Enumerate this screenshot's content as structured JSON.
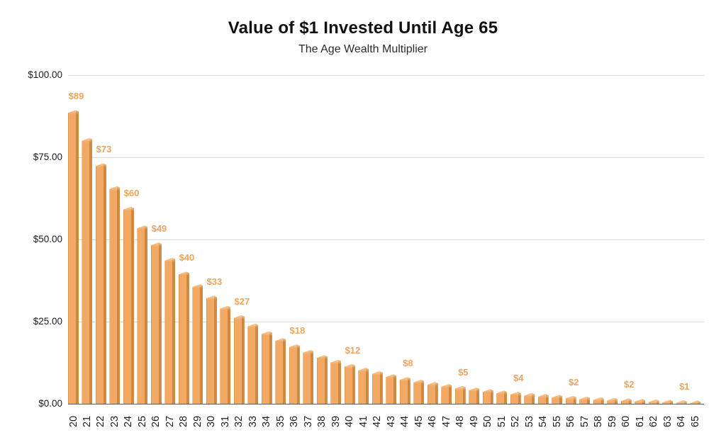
{
  "chart_data": {
    "type": "bar",
    "title": "Value of $1 Invested Until Age 65",
    "subtitle": "The Age Wealth Multiplier",
    "xlabel": "",
    "ylabel": "",
    "ylim": [
      0,
      100
    ],
    "grid": "horizontal",
    "legend": "none",
    "x_axis_note": "age at which $1 is invested, labels rotated 90 degrees",
    "y_ticks": [
      {
        "value": 0,
        "label": "$0.00"
      },
      {
        "value": 25,
        "label": "$25.00"
      },
      {
        "value": 50,
        "label": "$50.00"
      },
      {
        "value": 75,
        "label": "$75.00"
      },
      {
        "value": 100,
        "label": "$100.00"
      }
    ],
    "categories": [
      20,
      21,
      22,
      23,
      24,
      25,
      26,
      27,
      28,
      29,
      30,
      31,
      32,
      33,
      34,
      35,
      36,
      37,
      38,
      39,
      40,
      41,
      42,
      43,
      44,
      45,
      46,
      47,
      48,
      49,
      50,
      51,
      52,
      53,
      54,
      55,
      56,
      57,
      58,
      59,
      60,
      61,
      62,
      63,
      64,
      65
    ],
    "values": [
      89.35,
      80.86,
      73.18,
      66.23,
      59.93,
      54.24,
      49.08,
      44.42,
      40.2,
      36.38,
      32.92,
      29.79,
      26.96,
      24.4,
      22.08,
      19.98,
      18.08,
      16.37,
      14.81,
      13.4,
      12.13,
      10.98,
      9.93,
      8.99,
      8.14,
      7.36,
      6.66,
      6.03,
      5.46,
      4.94,
      4.47,
      4.05,
      3.66,
      3.31,
      3.0,
      2.71,
      2.46,
      2.22,
      2.01,
      1.82,
      1.65,
      1.49,
      1.35,
      1.22,
      1.11,
      1.0
    ],
    "point_labels": [
      {
        "age": 20,
        "label": "$89"
      },
      {
        "age": 22,
        "label": "$73"
      },
      {
        "age": 24,
        "label": "$60"
      },
      {
        "age": 26,
        "label": "$49"
      },
      {
        "age": 28,
        "label": "$40"
      },
      {
        "age": 30,
        "label": "$33"
      },
      {
        "age": 32,
        "label": "$27"
      },
      {
        "age": 36,
        "label": "$18"
      },
      {
        "age": 40,
        "label": "$12"
      },
      {
        "age": 44,
        "label": "$8"
      },
      {
        "age": 48,
        "label": "$5"
      },
      {
        "age": 52,
        "label": "$4"
      },
      {
        "age": 56,
        "label": "$2"
      },
      {
        "age": 60,
        "label": "$2"
      },
      {
        "age": 64,
        "label": "$1"
      }
    ],
    "colors": {
      "bar_face": "#f2a963",
      "bar_side": "#cd8844",
      "bar_top_highlight": "#fad09e",
      "bar_left_edge": "#e2954f",
      "data_label": "#eda45c",
      "gridline": "#dadada",
      "axis_line": "#5f5f5f",
      "axis_text": "#1c1c1c",
      "title_text": "#111111",
      "background": "#ffffff"
    }
  }
}
